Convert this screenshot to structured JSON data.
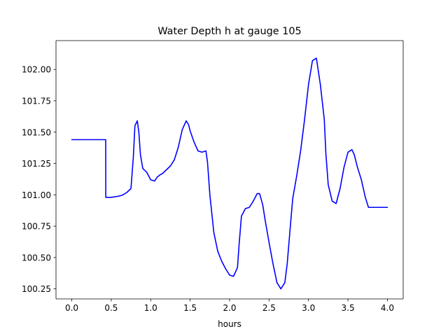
{
  "chart_data": {
    "type": "line",
    "title": "Water Depth h at gauge 105",
    "xlabel": "hours",
    "ylabel": "",
    "xlim": [
      -0.2,
      4.2
    ],
    "ylim": [
      100.17,
      102.23
    ],
    "grid": false,
    "legend": "none",
    "x_ticks": [
      0.0,
      0.5,
      1.0,
      1.5,
      2.0,
      2.5,
      3.0,
      3.5,
      4.0
    ],
    "x_tick_labels": [
      "0.0",
      "0.5",
      "1.0",
      "1.5",
      "2.0",
      "2.5",
      "3.0",
      "3.5",
      "4.0"
    ],
    "y_ticks": [
      100.25,
      100.5,
      100.75,
      101.0,
      101.25,
      101.5,
      101.75,
      102.0
    ],
    "y_tick_labels": [
      "100.25",
      "100.50",
      "100.75",
      "101.00",
      "101.25",
      "101.50",
      "101.75",
      "102.00"
    ],
    "series": [
      {
        "color": "#0000ff",
        "x": [
          0.0,
          0.1,
          0.2,
          0.26,
          0.3,
          0.43,
          0.431,
          0.5,
          0.6,
          0.65,
          0.7,
          0.75,
          0.78,
          0.8,
          0.83,
          0.85,
          0.87,
          0.9,
          0.95,
          1.0,
          1.05,
          1.08,
          1.12,
          1.15,
          1.2,
          1.25,
          1.3,
          1.35,
          1.4,
          1.45,
          1.48,
          1.5,
          1.55,
          1.6,
          1.65,
          1.7,
          1.72,
          1.75,
          1.8,
          1.85,
          1.9,
          1.95,
          2.0,
          2.05,
          2.1,
          2.12,
          2.15,
          2.2,
          2.25,
          2.3,
          2.35,
          2.38,
          2.42,
          2.45,
          2.5,
          2.55,
          2.6,
          2.65,
          2.7,
          2.73,
          2.77,
          2.8,
          2.85,
          2.9,
          2.95,
          3.0,
          3.05,
          3.1,
          3.15,
          3.2,
          3.22,
          3.25,
          3.3,
          3.35,
          3.4,
          3.45,
          3.5,
          3.55,
          3.58,
          3.62,
          3.67,
          3.72,
          3.76,
          3.8,
          3.85,
          3.9,
          3.95,
          4.0
        ],
        "y": [
          101.44,
          101.44,
          101.44,
          101.44,
          101.44,
          101.44,
          100.98,
          100.98,
          100.99,
          101.0,
          101.02,
          101.05,
          101.3,
          101.55,
          101.59,
          101.5,
          101.32,
          101.21,
          101.18,
          101.12,
          101.11,
          101.14,
          101.16,
          101.17,
          101.2,
          101.23,
          101.28,
          101.38,
          101.52,
          101.59,
          101.56,
          101.51,
          101.42,
          101.35,
          101.34,
          101.35,
          101.26,
          101.0,
          100.7,
          100.55,
          100.47,
          100.41,
          100.36,
          100.35,
          100.42,
          100.6,
          100.83,
          100.89,
          100.9,
          100.95,
          101.01,
          101.01,
          100.92,
          100.8,
          100.62,
          100.45,
          100.3,
          100.25,
          100.3,
          100.45,
          100.75,
          100.97,
          101.15,
          101.35,
          101.6,
          101.88,
          102.07,
          102.09,
          101.88,
          101.6,
          101.33,
          101.08,
          100.95,
          100.93,
          101.05,
          101.22,
          101.34,
          101.36,
          101.32,
          101.22,
          101.12,
          100.98,
          100.9,
          100.9,
          100.9,
          100.9,
          100.9,
          100.9
        ]
      }
    ]
  }
}
